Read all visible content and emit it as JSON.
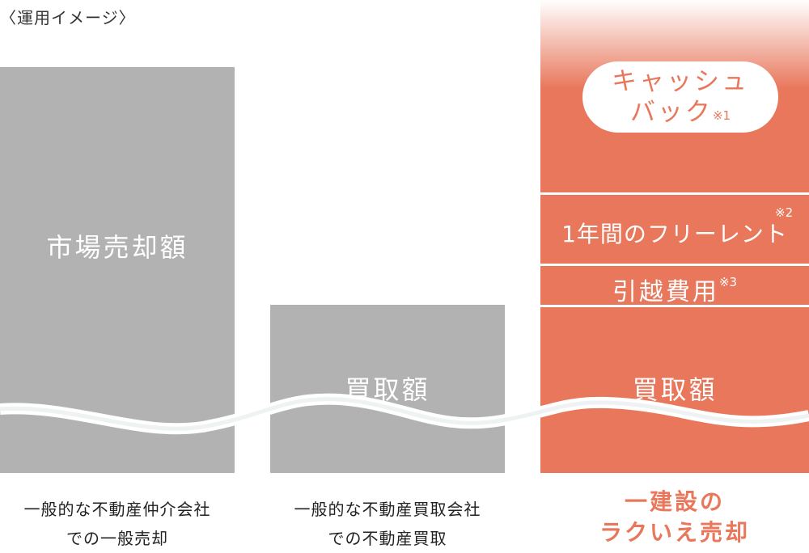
{
  "caption": "〈運用イメージ〉",
  "colors": {
    "gray": "#b2b2b2",
    "orange": "#e8775b",
    "text": "#333333",
    "white": "#ffffff"
  },
  "columns": [
    {
      "bar_label": "市場売却額",
      "footer_lines": [
        "一般的な不動産仲介会社",
        "での一般売却"
      ]
    },
    {
      "bar_label": "買取額",
      "footer_lines": [
        "一般的な不動産買取会社",
        "での不動産買取"
      ]
    },
    {
      "segments": {
        "cashback": {
          "line1": "キャッシュ",
          "line2": "バック",
          "note": "※1"
        },
        "free_rent": {
          "label": "1年間のフリーレント",
          "note": "※2"
        },
        "moving": {
          "label": "引越費用",
          "note": "※3"
        },
        "purchase": {
          "label": "買取額"
        }
      },
      "footer_lines": [
        "一建設の",
        "ラクいえ売却"
      ]
    }
  ]
}
